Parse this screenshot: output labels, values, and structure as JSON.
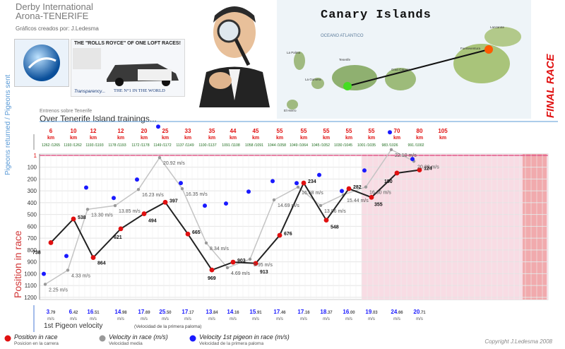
{
  "header": {
    "title": "Derby International\nArona-TENERIFE",
    "credit": "Gráficos creados por: J.Ledesma"
  },
  "ad": {
    "headline": "THE \"ROLLS ROYCE\" OF ONE LOFT RACES!",
    "transparency": "Transparency...",
    "number_one": "THE N°1 IN THE WORLD"
  },
  "map": {
    "title": "Canary Islands",
    "ocean": "OCEANO ATLANTICO",
    "islands": [
      "Lanzarote",
      "Fuerteventura",
      "Tenerife",
      "La Gomera",
      "La Palma",
      "El Hierro",
      "Gran Canaria"
    ]
  },
  "final_race_label": "FINAL RACE",
  "trainings": {
    "small_label": "Entrenos sobre Tenerife",
    "title": "Over Tenerife Island trainings..."
  },
  "axis_labels": {
    "pigeons": "Pigeons returned / Pigeons sent",
    "position": "Position in race"
  },
  "legend": {
    "position": {
      "label": "Position in race",
      "sub": "Posicion en la carrera"
    },
    "velocity": {
      "label": "Velocity in race (m/s)",
      "sub": "Velocidad media"
    },
    "first": {
      "label": "Velocity 1st pigeon in race (m/s)",
      "sub": "Velocidad de la primera paloma"
    }
  },
  "first_velocity": {
    "title": "1st Pigeon velocity",
    "sub": "(Velocidad de la primera paloma)"
  },
  "copyright": "Copyright J.Ledesma 2008",
  "colors": {
    "position": "#e01010",
    "velocity": "#999999",
    "first": "#1a1aff",
    "final_bg": "#f8dce4",
    "axis_title": "#d23838"
  },
  "chart_data": {
    "type": "line",
    "km_unit": "km",
    "x_km": [
      "6",
      "10",
      "12",
      "12",
      "20",
      "25",
      "33",
      "35",
      "44",
      "45",
      "55",
      "55",
      "55",
      "55",
      "55",
      "70",
      "80",
      "105"
    ],
    "returned_sent": [
      "1262 /1265",
      "1193 /1262",
      "1193 /1193",
      "1178 /1193",
      "1172 /1178",
      "1149 /1172",
      "1137 /1149",
      "1100 /1137",
      "1091 /1108",
      "1058 /1091",
      "1044 /1058",
      "1049 /1064",
      "1045 /1052",
      "1030 /1045",
      "1001 /1035",
      "983 /1026",
      "991 /1002"
    ],
    "ylim": [
      1230,
      0
    ],
    "y_ticks": [
      "1",
      "100",
      "200",
      "300",
      "400",
      "500",
      "600",
      "700",
      "800",
      "900",
      "1000",
      "1100",
      "1200"
    ],
    "position": [
      738,
      538,
      864,
      621,
      494,
      397,
      665,
      969,
      903,
      913,
      676,
      234,
      548,
      282,
      355,
      150,
      124
    ],
    "velocity": [
      2.25,
      4.33,
      13.3,
      13.85,
      16.23,
      20.92,
      16.35,
      8.34,
      4.69,
      5.95,
      14.69,
      16.58,
      13.86,
      15.44,
      16.6,
      22.1,
      20.39
    ],
    "velocity_labels": [
      "2.25 m/s",
      "4.33 m/s",
      "13.30 m/s",
      "13.85 m/s",
      "16.23 m/s",
      "20.92 m/s",
      "16.35 m/s",
      "8.34 m/s",
      "4.69 m/s",
      "5.95 m/s",
      "14.69 m/s",
      "16.58 m/s",
      "13.86 m/s",
      "15.44 m/s",
      "16.60 m/s",
      "22.10 m/s",
      "20.39 m/s"
    ],
    "first_velocity": [
      "3.79",
      "6.42",
      "16.51",
      "14.98",
      "17.69",
      "25.50",
      "17.17",
      "13.84",
      "14.16",
      "15.91",
      "17.46",
      "17.16",
      "18.37",
      "16.00",
      "19.03",
      "24.66",
      "20.71"
    ]
  }
}
